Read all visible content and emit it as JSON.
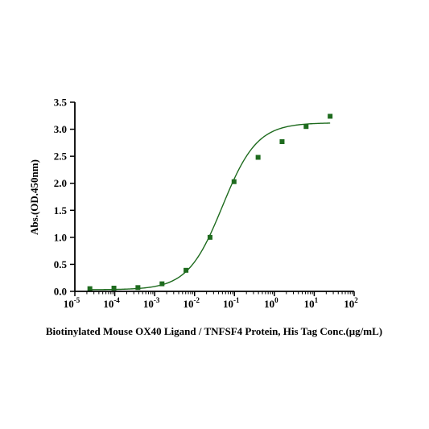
{
  "chart_data": {
    "type": "scatter",
    "xlabel": "Biotinylated Mouse OX40 Ligand / TNFSF4 Protein, His Tag Conc.(μg/mL)",
    "ylabel": "Abs.(OD.450nm)",
    "x_scale": "log",
    "xlim": [
      1e-05,
      100
    ],
    "ylim": [
      0,
      3.5
    ],
    "x_ticks": [
      {
        "base": "10",
        "exp": "-5"
      },
      {
        "base": "10",
        "exp": "-4"
      },
      {
        "base": "10",
        "exp": "-3"
      },
      {
        "base": "10",
        "exp": "-2"
      },
      {
        "base": "10",
        "exp": "-1"
      },
      {
        "base": "10",
        "exp": "0"
      },
      {
        "base": "10",
        "exp": "1"
      },
      {
        "base": "10",
        "exp": "2"
      }
    ],
    "y_ticks": [
      "0.0",
      "0.5",
      "1.0",
      "1.5",
      "2.0",
      "2.5",
      "3.0",
      "3.5"
    ],
    "grid": false,
    "color": "#1e6b1e",
    "series": [
      {
        "x": [
          2.38e-05,
          9.54e-05,
          0.000381,
          0.00153,
          0.0061,
          0.0244,
          0.0977,
          0.391,
          1.5625,
          6.25,
          25
        ],
        "y": [
          0.05,
          0.06,
          0.07,
          0.14,
          0.39,
          1.0,
          2.03,
          2.48,
          2.77,
          3.05,
          3.24
        ],
        "fit": "4PL",
        "fit_params": {
          "bottom": 0.03,
          "top": 3.12,
          "ec50": 0.05,
          "hill": 1.0
        }
      }
    ]
  }
}
